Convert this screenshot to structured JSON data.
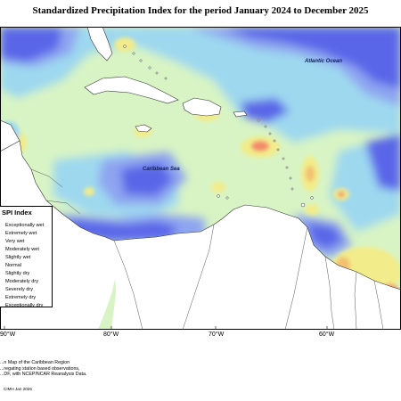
{
  "title": "Standardized Precipitation Index for the period January 2024 to December 2025",
  "map": {
    "labels": {
      "atlantic": "Atlantic Ocean",
      "caribbean": "Caribbean Sea"
    },
    "colors": {
      "exceptionally_wet": "#5a66e8",
      "very_wet": "#8ea4f0",
      "moderately_wet": "#9ed8ef",
      "normal": "#d8f4c4",
      "slightly_dry": "#f2ec8a",
      "moderately_dry": "#f2c070",
      "severely_dry": "#f28a6a",
      "land": "#ffffff",
      "coast": "#333333"
    }
  },
  "legend": {
    "title": "SPI Index",
    "items": [
      {
        "label": "Exceptionally wet",
        "color": "#3b3fd6"
      },
      {
        "label": "Extremely wet",
        "color": "#5a66e8"
      },
      {
        "label": "Very wet",
        "color": "#8ea4f0"
      },
      {
        "label": "Moderately wet",
        "color": "#9ed8ef"
      },
      {
        "label": "Slightly wet",
        "color": "#c6ecd8"
      },
      {
        "label": "Normal",
        "color": "#d8f4c4"
      },
      {
        "label": "Slightly dry",
        "color": "#f2ec8a"
      },
      {
        "label": "Moderately dry",
        "color": "#f2c070"
      },
      {
        "label": "Severely dry",
        "color": "#f28a6a"
      },
      {
        "label": "Extremely dry",
        "color": "#e85050"
      },
      {
        "label": "Exceptionally dry",
        "color": "#c02020"
      }
    ]
  },
  "axis": {
    "lon_labels": [
      "90°W",
      "80°W",
      "70°W",
      "60°W"
    ]
  },
  "credit": {
    "line1": "...n Map of the Caribbean Region",
    "line2": "...regating station based observations,",
    "line3": "...DF, with NCEP/NCAR Reanalysis Data."
  },
  "stamp": "CIMH Jan 2026"
}
